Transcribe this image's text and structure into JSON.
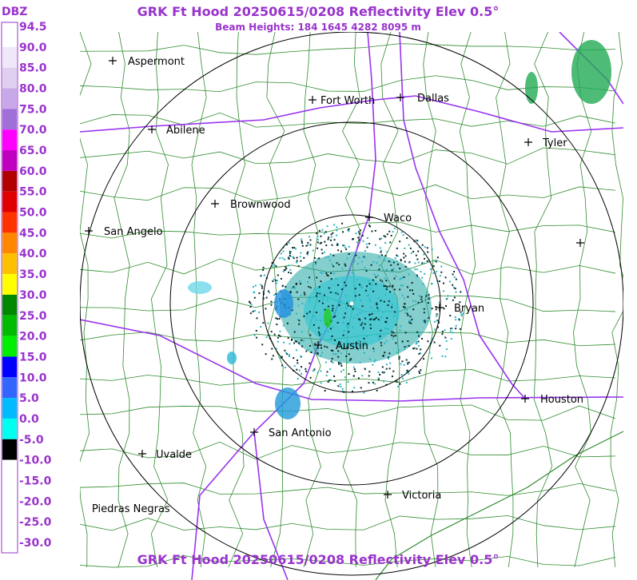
{
  "header": {
    "title": "GRK Ft Hood 20250615/0208 Reflectivity Elev 0.5°",
    "subtitle": "Beam Heights: 184 1645 4282 8095 m"
  },
  "legend": {
    "title": "DBZ",
    "labels": [
      "94.5",
      "90.0",
      "85.0",
      "80.0",
      "75.0",
      "70.0",
      "65.0",
      "60.0",
      "55.0",
      "50.0",
      "45.0",
      "40.0",
      "35.0",
      "30.0",
      "25.0",
      "20.0",
      "15.0",
      "10.0",
      "5.0",
      "0.0",
      "-5.0",
      "-10.0",
      "-15.0",
      "-20.0",
      "-25.0",
      "-30.0"
    ]
  },
  "cities": [
    "Aspermont",
    "Abilene",
    "Fort Worth",
    "Dallas",
    "Tyler",
    "Brownwood",
    "Waco",
    "San Angelo",
    "Bryan",
    "Austin",
    "Houston",
    "San Antonio",
    "Uvalde",
    "Victoria",
    "Piedras Negras"
  ]
}
